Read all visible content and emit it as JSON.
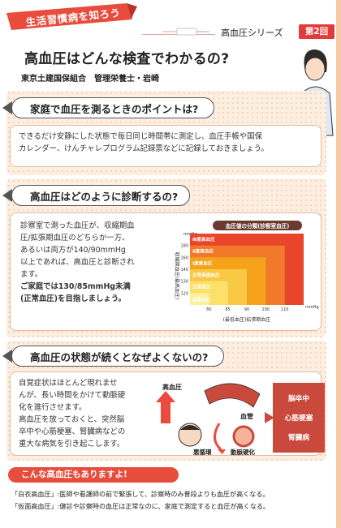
{
  "header": {
    "series_ribbon": "生活習慣病を知ろう",
    "series_name": "高血圧シリーズ",
    "issue": "第2回",
    "title": "高血圧はどんな検査でわかるの?",
    "byline": "東京土建国保組合　管理栄養士・岩崎"
  },
  "sections": [
    {
      "question": "家庭で血圧を測るときのポイントは?",
      "body": [
        "できるだけ安静にした状態で毎日同じ時間帯に測定し、血圧手帳や国保",
        "カレンダー、けんチャレプログラム記録票などに記録しておきましょう。"
      ]
    },
    {
      "question": "高血圧はどのように診断するの?",
      "body": [
        "診察室で測った血圧が、収縮期血",
        "圧/拡張期血圧のどちらか一方、",
        "あるいは両方が140/90mmHg",
        "以上であれば、高血圧と診断され",
        "ます。",
        "ご家庭では130/85mmHg未満",
        "(正常血圧)を目指しましょう。"
      ]
    },
    {
      "question": "高血圧の状態が続くとなぜよくないの?",
      "body": [
        "自覚症状はほとんど現れませ",
        "んが、長い時間をかけて動脈硬",
        "化を進行させます。",
        "高血圧を放っておくと、突然脳",
        "卒中や心筋梗塞、腎臓病などの",
        "重大な病気を引き起こします。"
      ]
    }
  ],
  "chart_data": {
    "type": "heatmap",
    "title": "血圧値の分類(診察室血圧)",
    "ylabel": "収縮期血圧(最高血圧)",
    "xlabel": "(最低血圧)拡張期血圧",
    "y_unit": "mmHg",
    "x_unit": "mmHg",
    "y_ticks": [
      "180",
      "160",
      "140",
      "130",
      "120"
    ],
    "x_ticks": [
      "80",
      "85",
      "90",
      "100",
      "110"
    ],
    "zones": [
      {
        "label": "Ⅲ度高血圧",
        "sbp_min": 180,
        "dbp_min": 110,
        "color": "#e8452b"
      },
      {
        "label": "Ⅱ度高血圧",
        "sbp_min": 160,
        "dbp_min": 100,
        "color": "#f07a2a"
      },
      {
        "label": "Ⅰ度高血圧",
        "sbp_min": 140,
        "dbp_min": 90,
        "color": "#f5a31b"
      },
      {
        "label": "正常高値血圧",
        "sbp_min": 130,
        "dbp_min": 85,
        "color": "#f8c945"
      },
      {
        "label": "正常血圧",
        "sbp_min": 120,
        "dbp_min": 80,
        "color": "#fbe16a"
      },
      {
        "label": "至適血圧",
        "sbp_min": 0,
        "dbp_min": 0,
        "color": "#fdf09a"
      }
    ]
  },
  "illustration": {
    "arrow_label": "高血圧",
    "vessel_label": "血管",
    "cycle_label": "悪循環",
    "hardening_label": "動脈硬化",
    "diseases": [
      "脳卒中",
      "心筋梗塞",
      "腎臓病"
    ]
  },
  "bottom": {
    "band": "こんな高血圧もありますよ!",
    "notes": [
      "「白衣高血圧」:医師や看護師の前で緊張して、診察時のみ普段よりも血圧が高くなる。",
      "「仮面高血圧」:健診や診察時の血圧は正常なのに、家庭で測定すると血圧が高くなる。"
    ]
  }
}
